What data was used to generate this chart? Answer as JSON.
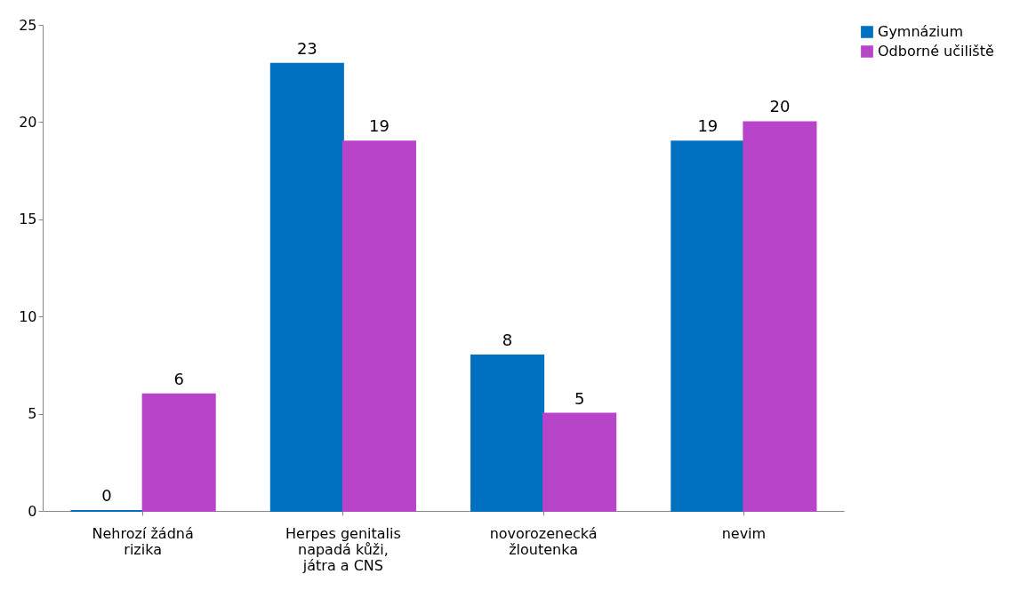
{
  "chart_data": {
    "type": "bar",
    "categories": [
      "Nehrozí žádná rizika",
      "Herpes genitalis napadá kůži, játra a CNS",
      "novorozenecká žloutenka",
      "nevim"
    ],
    "series": [
      {
        "name": "Gymnázium",
        "color": "#0070c0",
        "values": [
          0,
          23,
          8,
          19
        ]
      },
      {
        "name": "Odborné učiliště",
        "color": "#b845c9",
        "values": [
          6,
          19,
          5,
          20
        ]
      }
    ],
    "ylim": [
      0,
      25
    ],
    "yticks": [
      0,
      5,
      10,
      15,
      20,
      25
    ],
    "data_labels": true,
    "legend": "right",
    "grid": false
  }
}
